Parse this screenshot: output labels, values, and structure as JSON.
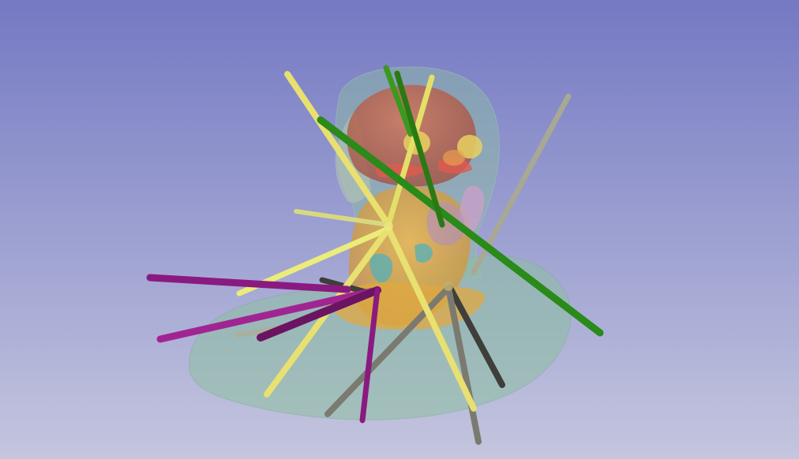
{
  "view": {
    "background_top": "#7479c3",
    "background_bottom": "#c4c6de"
  },
  "anatomy": {
    "skin_color": "#8cbfa0",
    "skull_color": "#b8c7b2",
    "brain_color": "#c86a50",
    "ventricle_color": "#d86060",
    "tissue_color": "#e0a840",
    "nerve_color": "#e8c060",
    "lobe_color": "#c9a0c8",
    "vessel_color": "#4ab0c0"
  },
  "tools": {
    "yellow_color": "#e8e070",
    "green_color": "#2a8a1a",
    "gray_color": "#a8a894",
    "dark_gray_color": "#464640",
    "magenta_color": "#8a1a80"
  }
}
